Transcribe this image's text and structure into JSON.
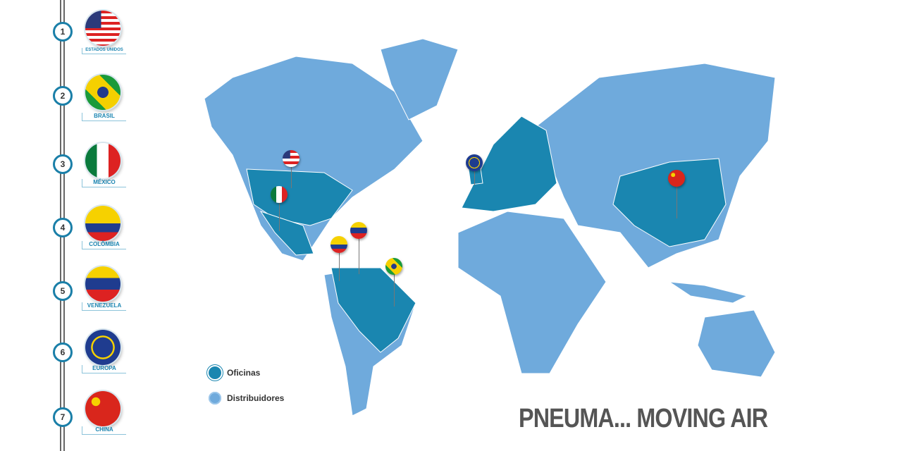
{
  "sidebar": {
    "items": [
      {
        "number": "1",
        "label": "ESTADOS UNIDOS",
        "flag": "usa-flag"
      },
      {
        "number": "2",
        "label": "BRASIL",
        "flag": "brazil-flag"
      },
      {
        "number": "3",
        "label": "MÉXICO",
        "flag": "mexico-flag"
      },
      {
        "number": "4",
        "label": "COLÔMBIA",
        "flag": "colombia-flag"
      },
      {
        "number": "5",
        "label": "VENEZUELA",
        "flag": "venezuela-flag"
      },
      {
        "number": "6",
        "label": "EUROPA",
        "flag": "eu-flag"
      },
      {
        "number": "7",
        "label": "CHINA",
        "flag": "china-flag"
      }
    ]
  },
  "legend": {
    "offices": "Oficinas",
    "distributors": "Distribuidores"
  },
  "colors": {
    "offices": "#1a86b0",
    "distributors": "#6faadc",
    "accent": "#1d86b2"
  },
  "slogan": "PNEUMA... MOVING AIR"
}
